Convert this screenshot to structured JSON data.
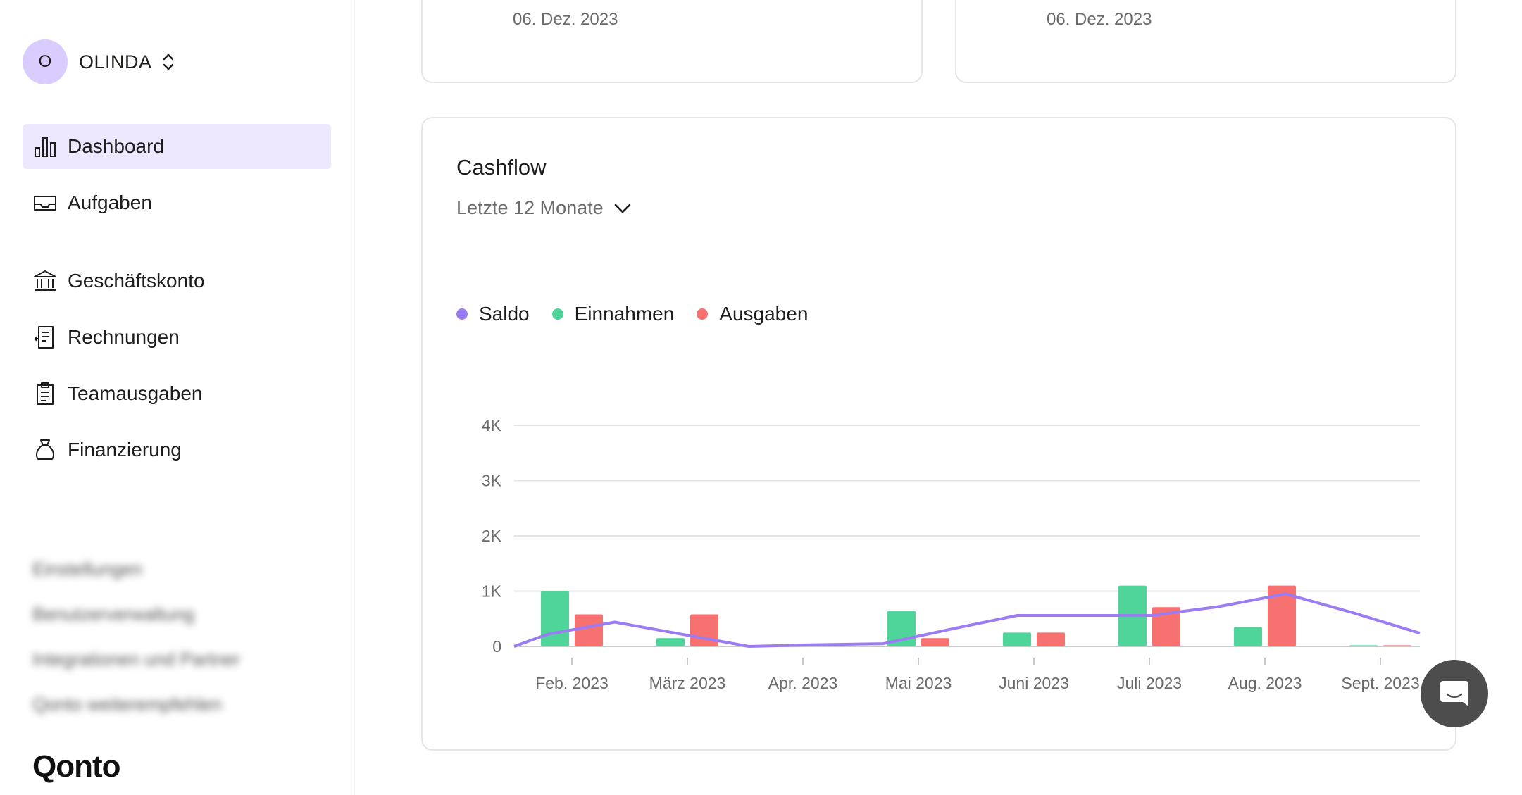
{
  "sidebar": {
    "org": {
      "initial": "O",
      "name": "OLINDA"
    },
    "items": [
      {
        "label": "Dashboard",
        "icon": "bar-chart-icon"
      },
      {
        "label": "Aufgaben",
        "icon": "inbox-icon"
      },
      {
        "label": "Geschäftskonto",
        "icon": "bank-icon"
      },
      {
        "label": "Rechnungen",
        "icon": "invoice-icon"
      },
      {
        "label": "Teamausgaben",
        "icon": "clipboard-icon"
      },
      {
        "label": "Finanzierung",
        "icon": "money-bag-icon"
      }
    ],
    "blurred_links": [
      "Einstellungen",
      "Benutzerverwaltung",
      "Integrationen und Partner",
      "Qonto weiterempfehlen"
    ],
    "logo": "Qonto"
  },
  "top_cards": [
    {
      "date": "06. Dez. 2023"
    },
    {
      "date": "06. Dez. 2023"
    }
  ],
  "cashflow": {
    "title": "Cashflow",
    "period": "Letzte 12 Monate",
    "legend": [
      {
        "name": "Saldo",
        "color": "#9b7cf2"
      },
      {
        "name": "Einnahmen",
        "color": "#4fd49a"
      },
      {
        "name": "Ausgaben",
        "color": "#f87171"
      }
    ]
  },
  "chart_data": {
    "type": "bar",
    "categories": [
      "Feb. 2023",
      "März 2023",
      "Apr. 2023",
      "Mai 2023",
      "Juni 2023",
      "Juli 2023",
      "Aug. 2023",
      "Sept. 2023"
    ],
    "y_ticks": [
      "0",
      "1K",
      "2K",
      "3K",
      "4K"
    ],
    "ylim": [
      0,
      4000
    ],
    "grid": true,
    "legend_position": "top-left",
    "series": [
      {
        "name": "Einnahmen",
        "type": "bar",
        "color": "#4fd49a",
        "values": [
          1000,
          150,
          0,
          650,
          250,
          1100,
          350,
          20
        ]
      },
      {
        "name": "Ausgaben",
        "type": "bar",
        "color": "#f87171",
        "values": [
          580,
          580,
          0,
          150,
          250,
          710,
          1100,
          20
        ]
      },
      {
        "name": "Saldo",
        "type": "line",
        "color": "#9b7cf2",
        "x": [
          0,
          0.5,
          1.5,
          2.5,
          3.5,
          4.5,
          5.5,
          6.5,
          7.5,
          8.5,
          9.5,
          10.5,
          11.5,
          12.5,
          13.5
        ],
        "values": [
          0,
          220,
          440,
          220,
          0,
          30,
          50,
          310,
          560,
          560,
          560,
          720,
          950,
          610,
          240
        ]
      }
    ]
  },
  "chat": {
    "icon": "chat-icon"
  }
}
